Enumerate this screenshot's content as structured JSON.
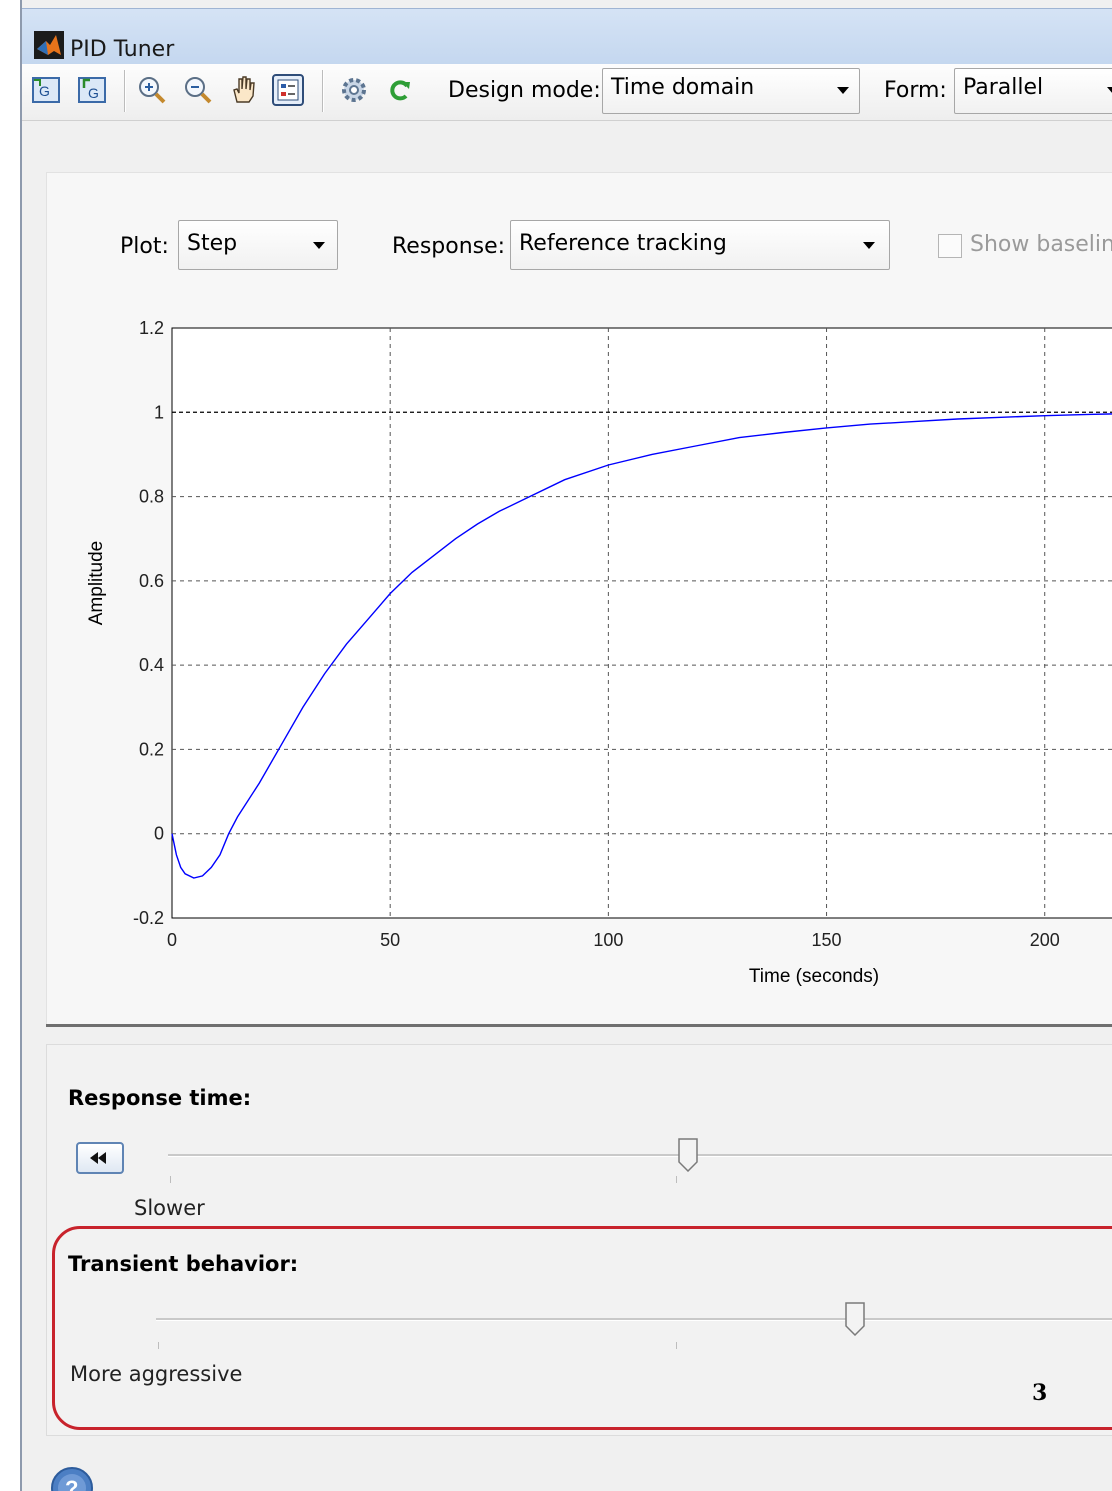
{
  "window": {
    "title": "PID Tuner"
  },
  "toolbar": {
    "design_mode_label": "Design mode:",
    "design_mode_value": "Time domain",
    "form_label": "Form:",
    "form_value": "Parallel"
  },
  "plot_controls": {
    "plot_label": "Plot:",
    "plot_value": "Step",
    "response_label": "Response:",
    "response_value": "Reference tracking",
    "show_baseline_label": "Show baseline",
    "show_baseline_checked": false
  },
  "chart_data": {
    "type": "line",
    "title": "",
    "xlabel": "Time (seconds)",
    "ylabel": "Amplitude",
    "xlim": [
      0,
      220
    ],
    "ylim": [
      -0.2,
      1.2
    ],
    "x_ticks": [
      0,
      50,
      100,
      150,
      200
    ],
    "x_tick_labels": [
      "0",
      "50",
      "100",
      "150",
      "200"
    ],
    "y_ticks": [
      -0.2,
      0,
      0.2,
      0.4,
      0.6,
      0.8,
      1
    ],
    "y_tick_labels": [
      "-0.2",
      "0",
      "0.2",
      "0.4",
      "0.6",
      "0.8",
      "1"
    ],
    "y_top_label": "1.2",
    "grid": true,
    "reference_line": 1,
    "series": [
      {
        "color": "#0000ff",
        "x": [
          0,
          1,
          2,
          3,
          5,
          7,
          9,
          11,
          13,
          15,
          20,
          25,
          30,
          35,
          40,
          45,
          50,
          55,
          60,
          65,
          70,
          75,
          80,
          90,
          100,
          110,
          120,
          130,
          140,
          150,
          160,
          170,
          180,
          190,
          200,
          210,
          220
        ],
        "y": [
          0,
          -0.05,
          -0.08,
          -0.095,
          -0.105,
          -0.1,
          -0.08,
          -0.05,
          0.0,
          0.04,
          0.12,
          0.21,
          0.3,
          0.38,
          0.45,
          0.51,
          0.57,
          0.62,
          0.66,
          0.7,
          0.735,
          0.765,
          0.79,
          0.84,
          0.875,
          0.9,
          0.92,
          0.94,
          0.952,
          0.963,
          0.972,
          0.978,
          0.984,
          0.988,
          0.992,
          0.995,
          0.997
        ]
      }
    ]
  },
  "tuning": {
    "response_time_label": "Response time:",
    "response_time_left": "Slower",
    "response_time_value": 0.55,
    "transient_label": "Transient behavior:",
    "transient_left": "More aggressive",
    "transient_value": 0.73
  },
  "page_number": "3",
  "icons": {
    "toolbar": [
      "import-plant-icon",
      "export-icon",
      "zoom-in-icon",
      "zoom-out-icon",
      "pan-icon",
      "legend-icon",
      "settings-icon",
      "refresh-icon"
    ],
    "help": "help-icon"
  },
  "colors": {
    "curve": "#0000ff",
    "highlight": "#c8232c"
  }
}
